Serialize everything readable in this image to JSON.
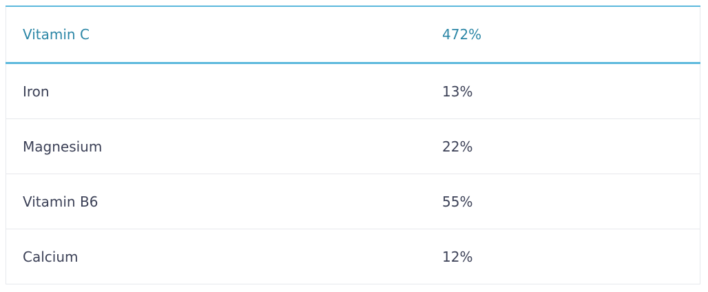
{
  "table": {
    "header": [
      "Vitamin C",
      "472%"
    ],
    "rows": [
      [
        "Iron",
        "13%"
      ],
      [
        "Magnesium",
        "22%"
      ],
      [
        "Vitamin B6",
        "55%"
      ],
      [
        "Calcium",
        "12%"
      ]
    ]
  }
}
